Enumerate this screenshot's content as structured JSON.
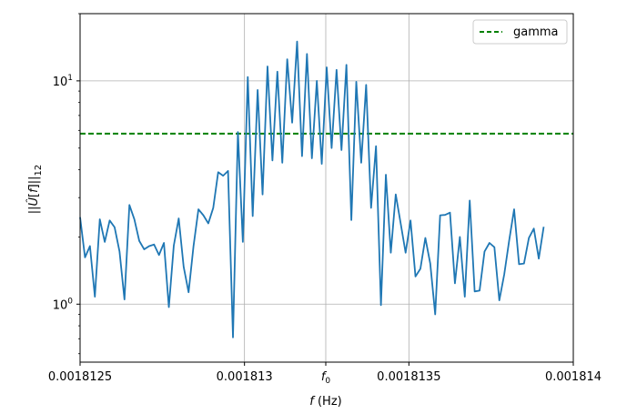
{
  "chart_data": {
    "type": "line",
    "title": "",
    "xlabel": "f (Hz)",
    "ylabel": "||Û[f]||₁₂",
    "yscale": "log",
    "xlim": [
      0.0018125,
      0.001814
    ],
    "ylim": [
      0.55,
      20
    ],
    "grid": true,
    "x_ticks": [
      {
        "value": 0.0018125,
        "label": "0.0018125"
      },
      {
        "value": 0.001813,
        "label": "0.001813"
      },
      {
        "value": 0.0018132472,
        "label": "f0"
      },
      {
        "value": 0.0018135,
        "label": "0.0018135"
      },
      {
        "value": 0.001814,
        "label": "0.001814"
      }
    ],
    "y_ticks": [
      {
        "value": 1,
        "label": "10^0"
      },
      {
        "value": 10,
        "label": "10^1"
      }
    ],
    "legend": {
      "position": "top-right"
    },
    "series": [
      {
        "color": "#1f77b4",
        "style": "solid",
        "x_start": 0.0018125,
        "x_step": 1.5e-08,
        "values": [
          2.45,
          1.62,
          1.82,
          1.08,
          2.4,
          1.9,
          2.37,
          2.21,
          1.72,
          1.05,
          2.78,
          2.4,
          1.92,
          1.76,
          1.82,
          1.85,
          1.66,
          1.88,
          0.97,
          1.83,
          2.42,
          1.47,
          1.13,
          1.82,
          2.66,
          2.5,
          2.3,
          2.7,
          3.9,
          3.76,
          3.95,
          0.71,
          5.9,
          1.9,
          10.4,
          2.48,
          9.1,
          3.1,
          11.6,
          4.4,
          11.0,
          4.3,
          12.5,
          6.5,
          15.0,
          4.6,
          13.2,
          4.5,
          10.0,
          4.25,
          11.5,
          5.0,
          11.2,
          4.9,
          11.8,
          2.38,
          9.9,
          4.3,
          9.6,
          2.7,
          5.1,
          0.99,
          3.8,
          1.7,
          3.1,
          2.3,
          1.7,
          2.37,
          1.33,
          1.44,
          1.98,
          1.52,
          0.9,
          2.5,
          2.51,
          2.57,
          1.24,
          2.0,
          1.08,
          2.91,
          1.14,
          1.15,
          1.72,
          1.88,
          1.8,
          1.04,
          1.36,
          1.93,
          2.66,
          1.51,
          1.52,
          1.98,
          2.18,
          1.6,
          2.22
        ]
      },
      {
        "name": "gamma",
        "color": "#008000",
        "style": "dashed",
        "constant": 5.8
      }
    ]
  }
}
